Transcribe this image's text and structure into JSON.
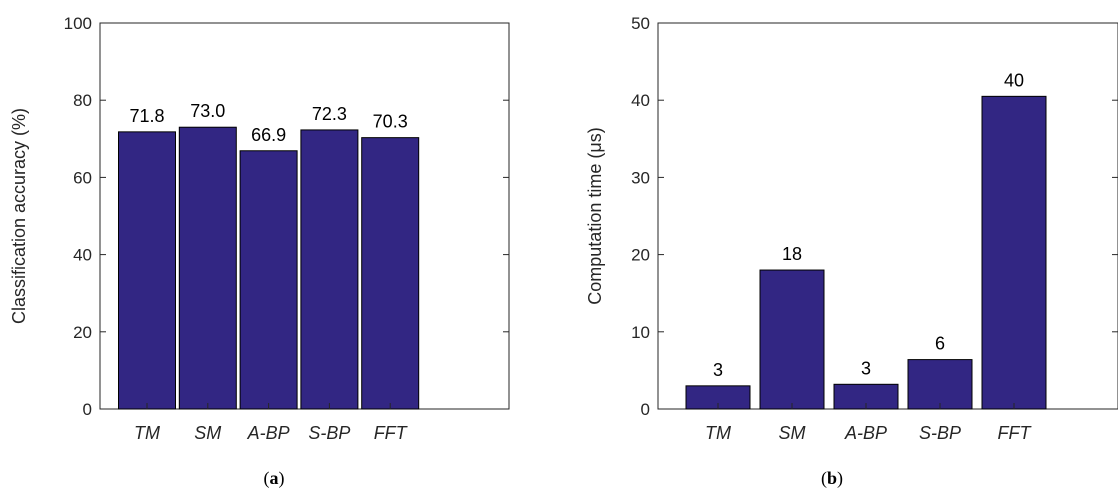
{
  "chart_data": [
    {
      "type": "bar",
      "panel_label": "a",
      "categories": [
        "TM",
        "SM",
        "A-BP",
        "S-BP",
        "FFT"
      ],
      "values": [
        71.8,
        73.0,
        66.9,
        72.3,
        70.3
      ],
      "value_labels": [
        "71.8",
        "73.0",
        "66.9",
        "72.3",
        "70.3"
      ],
      "ylabel": "Classification accuracy (%)",
      "xlabel": "",
      "ylim": [
        0,
        100
      ],
      "yticks": [
        0,
        20,
        40,
        60,
        80,
        100
      ],
      "bar_color": "#322683",
      "grid": false
    },
    {
      "type": "bar",
      "panel_label": "b",
      "categories": [
        "TM",
        "SM",
        "A-BP",
        "S-BP",
        "FFT"
      ],
      "values": [
        3,
        18,
        3.2,
        6.4,
        40.5
      ],
      "value_labels": [
        "3",
        "18",
        "3",
        "6",
        "40"
      ],
      "ylabel": "Computation time (μs)",
      "xlabel": "",
      "ylim": [
        0,
        50
      ],
      "yticks": [
        0,
        10,
        20,
        30,
        40,
        50
      ],
      "bar_color": "#322683",
      "grid": false
    }
  ]
}
